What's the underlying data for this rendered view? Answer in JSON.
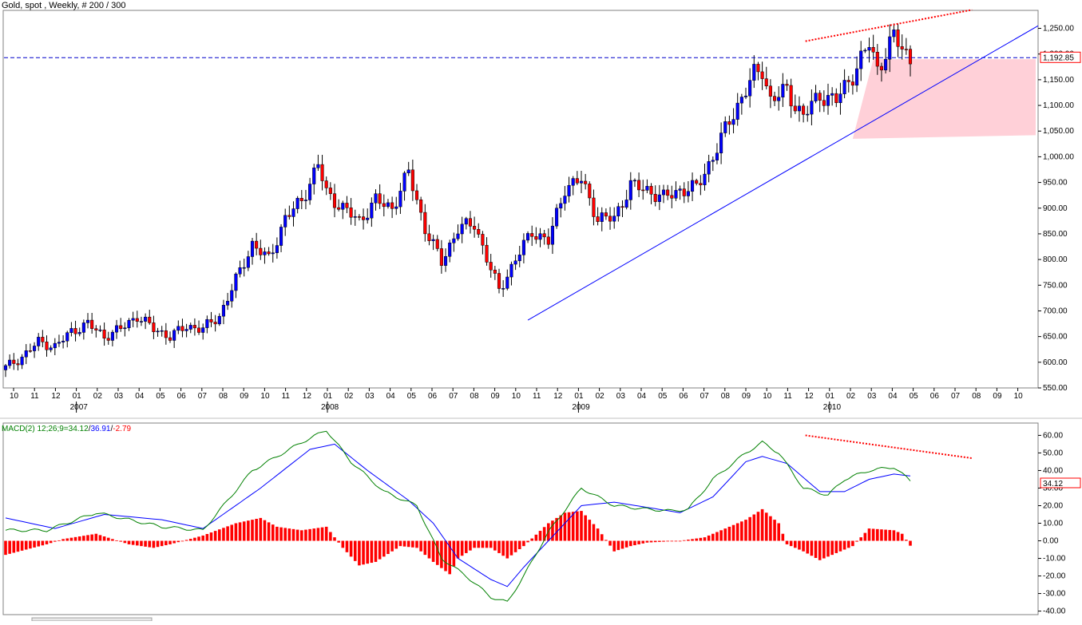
{
  "header": {
    "title": "Gold, spot , Weekly, # 200 / 300"
  },
  "price_panel": {
    "y_ticks": [
      "1,250.00",
      "1,200.00",
      "1,150.00",
      "1,100.00",
      "1,050.00",
      "1,000.00",
      "950.00",
      "900.00",
      "850.00",
      "800.00",
      "750.00",
      "700.00",
      "650.00",
      "600.00",
      "550.00"
    ],
    "y_tick_values": [
      1250,
      1200,
      1150,
      1100,
      1050,
      1000,
      950,
      900,
      850,
      800,
      750,
      700,
      650,
      600,
      550
    ],
    "last_price": "1,192.85",
    "last_price_value": 1192.85,
    "month_labels": [
      "10",
      "11",
      "12",
      "01",
      "02",
      "03",
      "04",
      "05",
      "06",
      "07",
      "08",
      "09",
      "10",
      "11",
      "12",
      "01",
      "02",
      "03",
      "04",
      "05",
      "06",
      "07",
      "08",
      "09",
      "10",
      "11",
      "12",
      "01",
      "02",
      "03",
      "04",
      "05",
      "06",
      "07",
      "08",
      "09",
      "10",
      "11",
      "12",
      "01",
      "02",
      "03",
      "04",
      "05",
      "06",
      "07",
      "08",
      "09",
      "10"
    ],
    "year_labels": [
      "2007",
      "2008",
      "2009",
      "2010"
    ],
    "colors": {
      "up": "#0000ff",
      "down": "#ff0000",
      "trendline": "#0000ff",
      "divergence": "#ff0000",
      "zone": "#ffd0d8"
    }
  },
  "macd_panel": {
    "label_prefix": "MACD(2) 12;26;9=",
    "macd_value": "34.12",
    "sep1": "/",
    "signal_value": "36.91",
    "sep2": "/",
    "hist_value": "-2.79",
    "y_ticks": [
      "60.00",
      "50.00",
      "40.00",
      "30.00",
      "20.00",
      "10.00",
      "0.00",
      "-10.00",
      "-20.00",
      "-30.00",
      "-40.00"
    ],
    "y_tick_values": [
      60,
      50,
      40,
      30,
      20,
      10,
      0,
      -10,
      -20,
      -30,
      -40
    ],
    "last_value": "34.12",
    "colors": {
      "macd": "#008000",
      "signal": "#0000ff",
      "hist": "#ff0000"
    }
  },
  "chart_data": [
    {
      "type": "candlestick",
      "title": "Gold, spot , Weekly, # 200 / 300",
      "ylim": [
        550,
        1285
      ],
      "price_anchors_by_week": [
        [
          0,
          590
        ],
        [
          4,
          610
        ],
        [
          8,
          640
        ],
        [
          12,
          630
        ],
        [
          16,
          660
        ],
        [
          20,
          675
        ],
        [
          24,
          650
        ],
        [
          28,
          665
        ],
        [
          32,
          690
        ],
        [
          36,
          665
        ],
        [
          40,
          650
        ],
        [
          44,
          670
        ],
        [
          48,
          665
        ],
        [
          52,
          690
        ],
        [
          56,
          760
        ],
        [
          60,
          830
        ],
        [
          64,
          800
        ],
        [
          68,
          880
        ],
        [
          72,
          915
        ],
        [
          76,
          985
        ],
        [
          78,
          930
        ],
        [
          82,
          900
        ],
        [
          86,
          875
        ],
        [
          90,
          915
        ],
        [
          94,
          900
        ],
        [
          98,
          970
        ],
        [
          102,
          860
        ],
        [
          106,
          795
        ],
        [
          110,
          860
        ],
        [
          114,
          870
        ],
        [
          118,
          780
        ],
        [
          120,
          740
        ],
        [
          124,
          800
        ],
        [
          128,
          855
        ],
        [
          132,
          835
        ],
        [
          136,
          940
        ],
        [
          140,
          955
        ],
        [
          144,
          880
        ],
        [
          148,
          880
        ],
        [
          152,
          945
        ],
        [
          156,
          935
        ],
        [
          160,
          920
        ],
        [
          164,
          935
        ],
        [
          168,
          940
        ],
        [
          172,
          1000
        ],
        [
          176,
          1070
        ],
        [
          178,
          1100
        ],
        [
          182,
          1160
        ],
        [
          184,
          1170
        ],
        [
          186,
          1110
        ],
        [
          190,
          1130
        ],
        [
          192,
          1100
        ],
        [
          194,
          1080
        ],
        [
          198,
          1120
        ],
        [
          202,
          1110
        ],
        [
          206,
          1160
        ],
        [
          210,
          1220
        ],
        [
          212,
          1170
        ],
        [
          216,
          1235
        ],
        [
          218,
          1210
        ],
        [
          220,
          1190
        ]
      ],
      "last_price": 1192.85,
      "annotations": [
        "rising support trendline",
        "price divergence line",
        "highlighted support zone",
        "horizontal last-price line"
      ]
    },
    {
      "type": "line",
      "title": "MACD(2) 12;26;9",
      "ylim": [
        -42,
        67
      ],
      "series": [
        {
          "name": "MACD",
          "anchors_by_week": [
            [
              0,
              6
            ],
            [
              10,
              6
            ],
            [
              22,
              16
            ],
            [
              38,
              8
            ],
            [
              48,
              6
            ],
            [
              60,
              40
            ],
            [
              72,
              56
            ],
            [
              78,
              63
            ],
            [
              84,
              45
            ],
            [
              92,
              28
            ],
            [
              100,
              20
            ],
            [
              106,
              -10
            ],
            [
              112,
              -20
            ],
            [
              118,
              -32
            ],
            [
              122,
              -35
            ],
            [
              126,
              -20
            ],
            [
              132,
              5
            ],
            [
              140,
              30
            ],
            [
              148,
              20
            ],
            [
              156,
              18
            ],
            [
              162,
              17
            ],
            [
              166,
              18
            ],
            [
              172,
              35
            ],
            [
              180,
              50
            ],
            [
              184,
              56
            ],
            [
              188,
              50
            ],
            [
              194,
              30
            ],
            [
              200,
              26
            ],
            [
              204,
              35
            ],
            [
              210,
              40
            ],
            [
              216,
              42
            ],
            [
              220,
              34.12
            ]
          ]
        },
        {
          "name": "Signal",
          "anchors_by_week": [
            [
              0,
              13
            ],
            [
              12,
              7
            ],
            [
              24,
              15
            ],
            [
              38,
              12
            ],
            [
              48,
              7
            ],
            [
              62,
              30
            ],
            [
              74,
              52
            ],
            [
              80,
              55
            ],
            [
              88,
              40
            ],
            [
              98,
              23
            ],
            [
              104,
              10
            ],
            [
              110,
              -10
            ],
            [
              118,
              -22
            ],
            [
              122,
              -26
            ],
            [
              126,
              -15
            ],
            [
              132,
              0
            ],
            [
              140,
              20
            ],
            [
              148,
              22
            ],
            [
              156,
              19
            ],
            [
              164,
              16
            ],
            [
              172,
              25
            ],
            [
              180,
              45
            ],
            [
              184,
              48
            ],
            [
              190,
              44
            ],
            [
              198,
              28
            ],
            [
              204,
              28
            ],
            [
              210,
              35
            ],
            [
              216,
              38
            ],
            [
              220,
              36.91
            ]
          ]
        },
        {
          "name": "Histogram",
          "anchors_by_week": [
            [
              0,
              -8
            ],
            [
              10,
              -2
            ],
            [
              14,
              1
            ],
            [
              22,
              4
            ],
            [
              30,
              -2
            ],
            [
              36,
              -4
            ],
            [
              40,
              -2
            ],
            [
              48,
              3
            ],
            [
              56,
              10
            ],
            [
              62,
              13
            ],
            [
              66,
              8
            ],
            [
              72,
              6
            ],
            [
              78,
              8
            ],
            [
              82,
              -4
            ],
            [
              86,
              -14
            ],
            [
              90,
              -12
            ],
            [
              96,
              -3
            ],
            [
              100,
              -4
            ],
            [
              104,
              -12
            ],
            [
              108,
              -19
            ],
            [
              110,
              -10
            ],
            [
              114,
              -4
            ],
            [
              118,
              -4
            ],
            [
              122,
              -10
            ],
            [
              126,
              -3
            ],
            [
              132,
              10
            ],
            [
              136,
              16
            ],
            [
              140,
              17
            ],
            [
              144,
              7
            ],
            [
              148,
              -6
            ],
            [
              152,
              -3
            ],
            [
              156,
              -1
            ],
            [
              164,
              0
            ],
            [
              170,
              2
            ],
            [
              176,
              8
            ],
            [
              180,
              12
            ],
            [
              184,
              18
            ],
            [
              188,
              10
            ],
            [
              190,
              -2
            ],
            [
              194,
              -6
            ],
            [
              198,
              -11
            ],
            [
              202,
              -7
            ],
            [
              206,
              -3
            ],
            [
              210,
              7
            ],
            [
              216,
              6
            ],
            [
              218,
              4
            ],
            [
              220,
              -2.79
            ]
          ]
        }
      ]
    }
  ]
}
